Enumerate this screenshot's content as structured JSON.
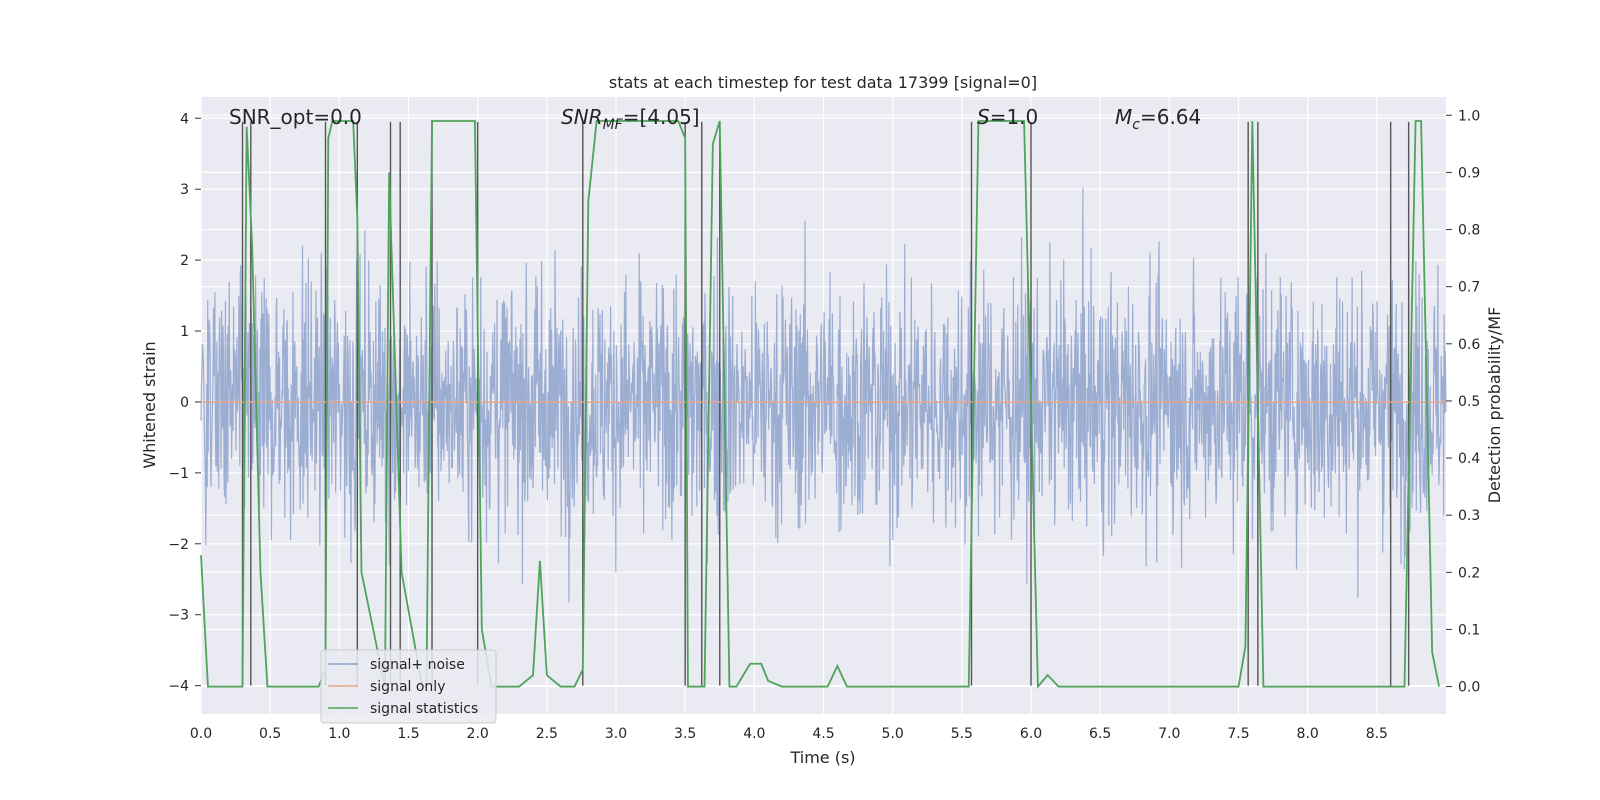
{
  "chart_data": {
    "type": "line",
    "title": "stats at each timestep for test data 17399 [signal=0]",
    "xlabel": "Time (s)",
    "ylabel_left": "Whitened strain",
    "ylabel_right": "Detection probability/MF",
    "xlim": [
      0.0,
      9.0
    ],
    "ylim_left": [
      -4.4,
      4.3
    ],
    "ylim_right": [
      -0.048,
      1.032
    ],
    "x_ticks": [
      "0.0",
      "0.5",
      "1.0",
      "1.5",
      "2.0",
      "2.5",
      "3.0",
      "3.5",
      "4.0",
      "4.5",
      "5.0",
      "5.5",
      "6.0",
      "6.5",
      "7.0",
      "7.5",
      "8.0",
      "8.5"
    ],
    "x_tick_values": [
      0.0,
      0.5,
      1.0,
      1.5,
      2.0,
      2.5,
      3.0,
      3.5,
      4.0,
      4.5,
      5.0,
      5.5,
      6.0,
      6.5,
      7.0,
      7.5,
      8.0,
      8.5
    ],
    "y_left_ticks": [
      "4",
      "3",
      "2",
      "1",
      "0",
      "−1",
      "−2",
      "−3",
      "−4"
    ],
    "y_left_tick_values": [
      4,
      3,
      2,
      1,
      0,
      -1,
      -2,
      -3,
      -4
    ],
    "y_right_ticks": [
      "1.0",
      "0.9",
      "0.8",
      "0.7",
      "0.6",
      "0.5",
      "0.4",
      "0.3",
      "0.2",
      "0.1",
      "0.0"
    ],
    "y_right_tick_values": [
      1.0,
      0.9,
      0.8,
      0.7,
      0.6,
      0.5,
      0.4,
      0.3,
      0.2,
      0.1,
      0.0
    ],
    "grid": true,
    "annotations": {
      "snr_opt": "SNR_opt=0.0",
      "snr_mf_sym": "SNR",
      "snr_mf_sub": "MF",
      "snr_mf_val": "=[4.05]",
      "s_sym": "S",
      "s_val": "=1.0",
      "mc_sym": "M",
      "mc_sub": "c",
      "mc_val": "=6.64"
    },
    "legend": {
      "position": "lower-left",
      "entries": [
        {
          "label": "signal+ noise",
          "color": "#8da0cb"
        },
        {
          "label": "signal only",
          "color": "#e5a58a"
        },
        {
          "label": "signal statistics",
          "color": "#4fa35a"
        }
      ]
    },
    "series": [
      {
        "name": "signal+ noise",
        "color": "#8ea2cc",
        "axis": "left",
        "envelope": [
          -4.0,
          3.9
        ]
      },
      {
        "name": "signal only",
        "color": "#e5a58a",
        "axis": "left",
        "value": 0.0
      },
      {
        "name": "signal statistics",
        "color": "#4fa35a",
        "axis": "right",
        "x": [
          0.0,
          0.05,
          0.25,
          0.3,
          0.33,
          0.37,
          0.43,
          0.48,
          0.85,
          0.9,
          0.92,
          0.95,
          1.1,
          1.13,
          1.16,
          1.33,
          1.36,
          1.45,
          1.6,
          1.63,
          1.67,
          1.73,
          1.95,
          1.98,
          2.03,
          2.1,
          2.3,
          2.4,
          2.45,
          2.5,
          2.6,
          2.7,
          2.76,
          2.8,
          2.86,
          3.45,
          3.5,
          3.52,
          3.55,
          3.6,
          3.64,
          3.7,
          3.75,
          3.82,
          3.87,
          3.92,
          3.97,
          4.05,
          4.1,
          4.2,
          4.4,
          4.53,
          4.6,
          4.67,
          4.8,
          5.2,
          5.5,
          5.55,
          5.62,
          5.65,
          5.95,
          6.05,
          6.12,
          6.2,
          6.35,
          6.5,
          7.0,
          7.5,
          7.55,
          7.6,
          7.68,
          7.9,
          8.2,
          8.4,
          8.6,
          8.7,
          8.78,
          8.8,
          8.82,
          8.9,
          8.95
        ],
        "y": [
          0.23,
          0.0,
          0.0,
          0.0,
          0.98,
          0.77,
          0.2,
          0.0,
          0.0,
          0.03,
          0.96,
          0.99,
          0.99,
          0.82,
          0.2,
          0.0,
          0.9,
          0.2,
          0.0,
          0.0,
          0.99,
          0.99,
          0.99,
          0.99,
          0.1,
          0.0,
          0.0,
          0.02,
          0.22,
          0.02,
          0.0,
          0.0,
          0.03,
          0.85,
          0.99,
          0.99,
          0.96,
          0.0,
          0.0,
          0.0,
          0.0,
          0.95,
          0.99,
          0.0,
          0.0,
          0.02,
          0.04,
          0.04,
          0.01,
          0.0,
          0.0,
          0.0,
          0.036,
          0.0,
          0.0,
          0.0,
          0.0,
          0.0,
          0.99,
          0.99,
          0.99,
          0.0,
          0.02,
          0.0,
          0.0,
          0.0,
          0.0,
          0.0,
          0.07,
          0.99,
          0.0,
          0.0,
          0.0,
          0.0,
          0.0,
          0.0,
          0.99,
          0.99,
          0.99,
          0.06,
          0.0
        ]
      },
      {
        "name": "vertical markers",
        "color": "#555555",
        "axis": "left",
        "x": [
          0.3,
          0.36,
          0.9,
          1.13,
          1.37,
          1.44,
          1.67,
          2.0,
          2.76,
          3.5,
          3.62,
          3.75,
          5.57,
          6.0,
          7.57,
          7.64,
          8.6,
          8.73
        ]
      }
    ]
  }
}
